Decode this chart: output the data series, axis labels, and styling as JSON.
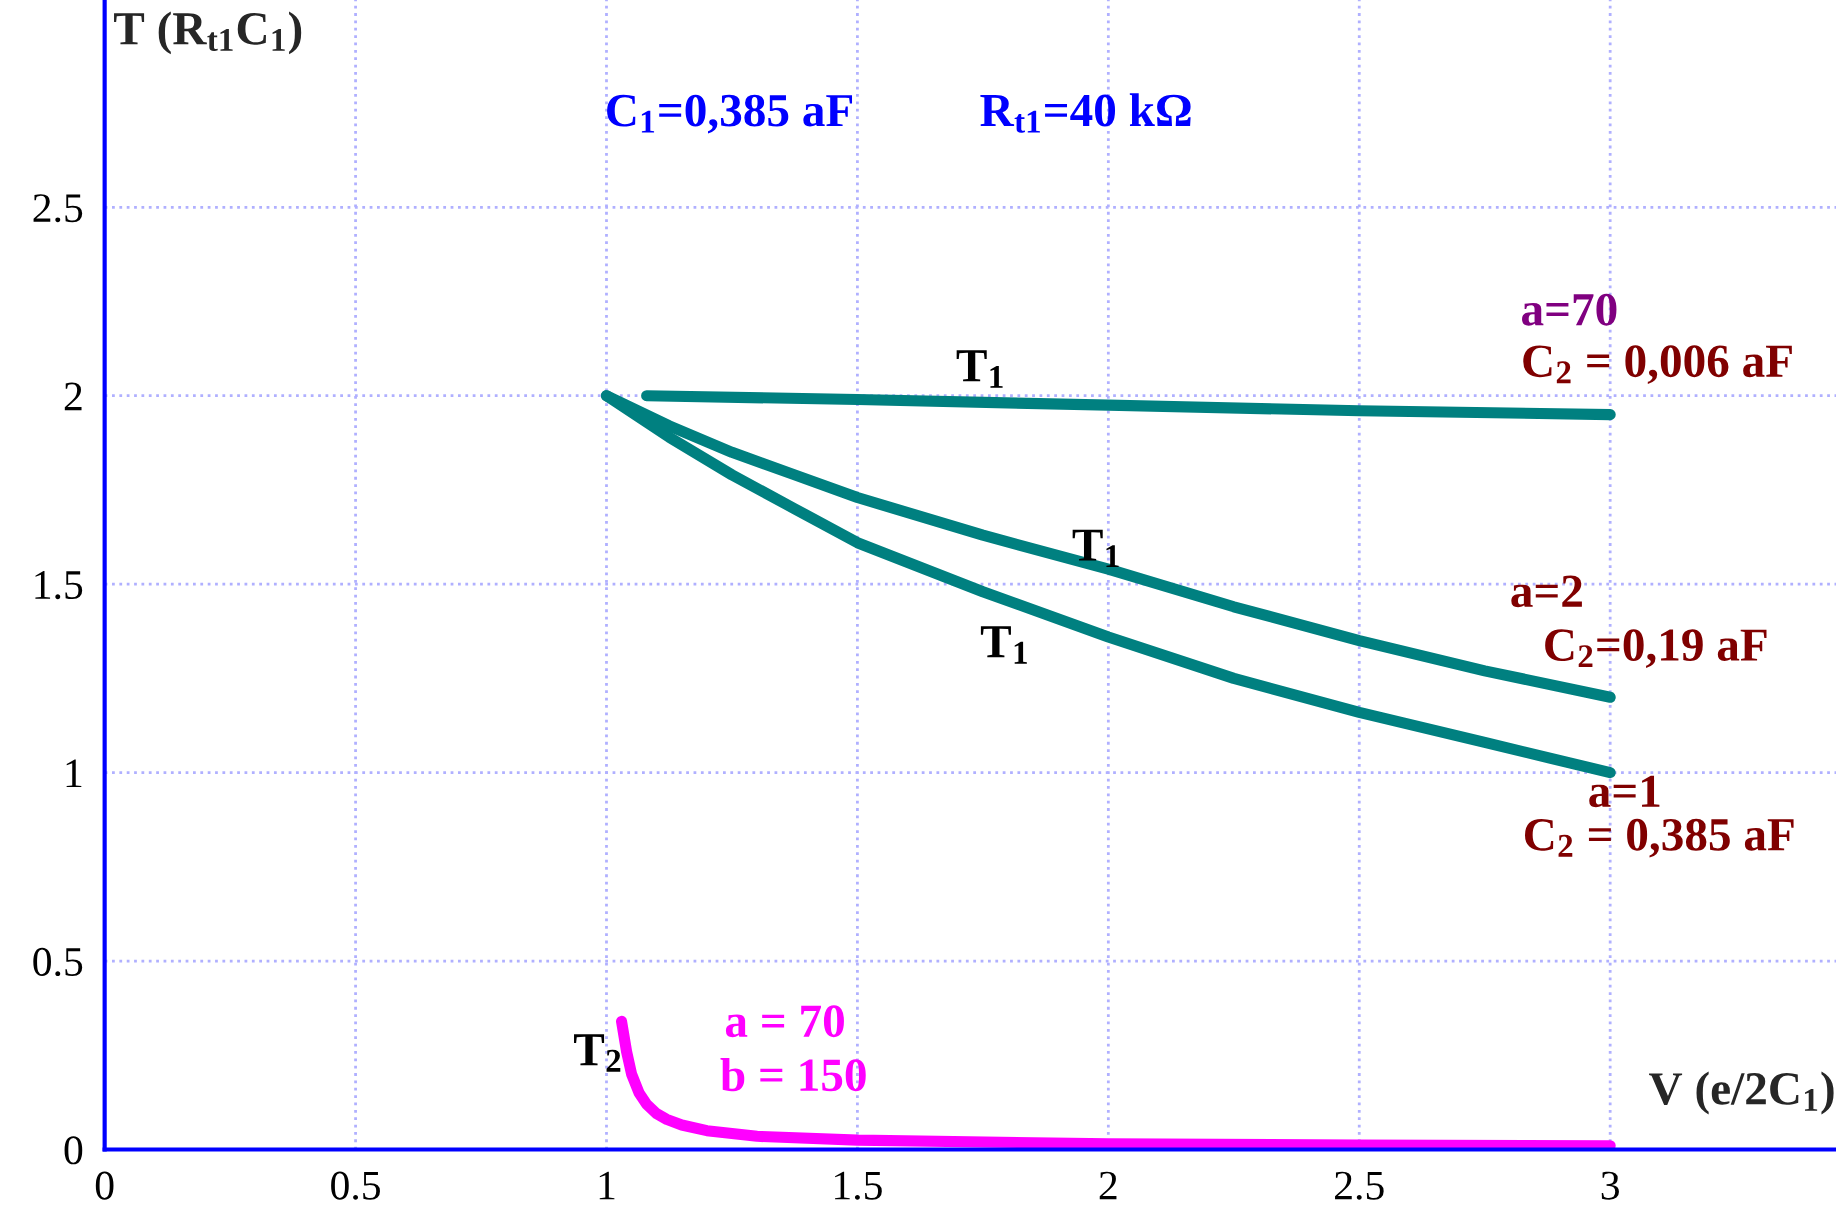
{
  "chart_data": {
    "type": "line",
    "xlabel": "V (e/2C$_{1}$)",
    "ylabel": "T (R$_{t1}$C$_{1}$)",
    "xlim": [
      0,
      3.45
    ],
    "ylim": [
      0,
      3.05
    ],
    "xticks": [
      0,
      0.5,
      1,
      1.5,
      2,
      2.5,
      3
    ],
    "yticks": [
      0,
      0.5,
      1,
      1.5,
      2,
      2.5
    ],
    "grid": true,
    "marker": "none",
    "line_style": "solid",
    "series": [
      {
        "color": "#008080",
        "x": [
          1.08,
          1.5,
          2,
          2.5,
          3
        ],
        "values": [
          2.0,
          1.99,
          1.975,
          1.96,
          1.95
        ]
      },
      {
        "color": "#008080",
        "x": [
          1,
          1.125,
          1.25,
          1.375,
          1.5,
          1.75,
          2,
          2.25,
          2.5,
          2.75,
          3
        ],
        "values": [
          2.0,
          1.92,
          1.85,
          1.79,
          1.73,
          1.63,
          1.54,
          1.44,
          1.35,
          1.27,
          1.2
        ]
      },
      {
        "color": "#008080",
        "x": [
          1,
          1.125,
          1.25,
          1.375,
          1.5,
          1.75,
          2,
          2.25,
          2.5,
          2.75,
          3
        ],
        "values": [
          2.0,
          1.89,
          1.79,
          1.7,
          1.61,
          1.48,
          1.36,
          1.25,
          1.16,
          1.08,
          1.0
        ]
      },
      {
        "color": "#ff00ff",
        "x": [
          1.03,
          1.04,
          1.05,
          1.065,
          1.08,
          1.1,
          1.12,
          1.15,
          1.2,
          1.3,
          1.5,
          2,
          2.5,
          3
        ],
        "values": [
          0.34,
          0.26,
          0.2,
          0.15,
          0.12,
          0.095,
          0.08,
          0.065,
          0.05,
          0.035,
          0.025,
          0.015,
          0.012,
          0.01
        ]
      }
    ],
    "annotations": [
      "C$_{1}$=0,385 aF",
      "R$_{t1}$=40 kΩ",
      "T$_{1}$",
      "T$_{1}$",
      "T$_{1}$",
      "a=70",
      "C$_{2}$ = 0,006 aF",
      "a=2",
      "C$_{2}$=0,19 aF",
      "a=1",
      "C$_{2}$ = 0,385 aF",
      "T$_{2}$",
      "a = 70",
      "b = 150"
    ]
  }
}
